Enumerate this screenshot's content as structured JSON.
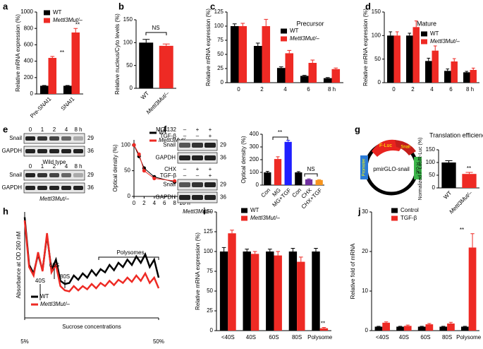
{
  "panel_letters": [
    "a",
    "b",
    "c",
    "d",
    "e",
    "f",
    "g",
    "h",
    "i",
    "j"
  ],
  "blots": {
    "e": {
      "lanes": [
        "0",
        "1",
        "2",
        "4",
        "8 h"
      ],
      "rows": [
        "Snail",
        "GAPDH"
      ],
      "markers": [
        "29",
        "36"
      ],
      "captions": [
        "Wild type",
        "Mettl3Mut/–"
      ]
    },
    "f": {
      "treatments": [
        {
          "name": "MG-132",
          "signs": [
            "–",
            "+",
            "+"
          ]
        },
        {
          "name": "TGF-β",
          "signs": [
            "–",
            "–",
            "+"
          ]
        }
      ],
      "treatments2": [
        {
          "name": "CHX",
          "signs": [
            "–",
            "+",
            "+"
          ]
        },
        {
          "name": "TGF-β",
          "signs": [
            "–",
            "–",
            "+"
          ]
        }
      ],
      "rows": [
        "Snail",
        "GAPDH"
      ],
      "markers": [
        "29",
        "36"
      ],
      "caption": "Mettl3Mut/–"
    }
  },
  "plasmid": {
    "label": "pmirGLO-snail",
    "segments": [
      "F-Luc",
      "Snail",
      "Promoter",
      "R-Luc"
    ]
  },
  "chart_data": [
    {
      "type": "bar",
      "ylabel": "Relative mRNA expression (%)",
      "categories": [
        "Pre-SNAI1",
        "SNAI1"
      ],
      "series": [
        {
          "name": "WT",
          "color": "#000000",
          "values": [
            100,
            100
          ],
          "errors": [
            3,
            3
          ]
        },
        {
          "name": "Mettl3Mut/–",
          "color": "#ee2a24",
          "values": [
            440,
            750
          ],
          "errors": [
            18,
            50
          ]
        }
      ],
      "ylim": [
        0,
        1000
      ],
      "yticks": [
        0,
        200,
        400,
        600,
        800,
        1000
      ],
      "annotations": [
        "**",
        "**"
      ]
    },
    {
      "type": "bar",
      "ylabel": "Relative nucleus/Cyto levels (%)",
      "categories": [
        "WT",
        "Mettl3Mut/–"
      ],
      "values": [
        100,
        93
      ],
      "errors": [
        7,
        4
      ],
      "colors": [
        "#000000",
        "#ee2a24"
      ],
      "ylim": [
        0,
        150
      ],
      "yticks": [
        0,
        50,
        100,
        150
      ],
      "annotations": [
        "NS"
      ]
    },
    {
      "type": "bar",
      "title": "Precursor",
      "ylabel": "Relative mRNA expression (%)",
      "categories": [
        "0",
        "2",
        "4",
        "6",
        "8 h"
      ],
      "series": [
        {
          "name": "WT",
          "color": "#000000",
          "values": [
            100,
            65,
            26,
            12,
            8
          ],
          "errors": [
            4,
            5,
            2,
            1,
            1
          ]
        },
        {
          "name": "Mettl3Mut/–",
          "color": "#ee2a24",
          "values": [
            100,
            100,
            52,
            35,
            24
          ],
          "errors": [
            5,
            12,
            5,
            5,
            2
          ]
        }
      ],
      "ylim": [
        0,
        125
      ],
      "yticks": [
        0,
        25,
        50,
        75,
        100,
        125
      ]
    },
    {
      "type": "bar",
      "title": "Mature",
      "ylabel": "Relative mRNA expression (%)",
      "categories": [
        "0",
        "2",
        "4",
        "6",
        "8 h"
      ],
      "series": [
        {
          "name": "WT",
          "color": "#000000",
          "values": [
            100,
            100,
            46,
            25,
            22
          ],
          "errors": [
            8,
            5,
            6,
            4,
            2
          ]
        },
        {
          "name": "Mettl3Mut/–",
          "color": "#ee2a24",
          "values": [
            100,
            118,
            68,
            45,
            27
          ],
          "errors": [
            8,
            13,
            10,
            6,
            4
          ]
        }
      ],
      "ylim": [
        0,
        150
      ],
      "yticks": [
        0,
        50,
        100,
        150
      ]
    },
    {
      "type": "line",
      "ylabel": "Optical density (%)",
      "x": [
        0,
        1,
        2,
        4,
        8
      ],
      "series": [
        {
          "name": "WT",
          "color": "#000000",
          "values": [
            100,
            78,
            55,
            38,
            28
          ]
        },
        {
          "name": "Mettl3Mut/–",
          "color": "#ee2a24",
          "values": [
            100,
            82,
            50,
            35,
            30
          ]
        }
      ],
      "xlim": [
        0,
        10
      ],
      "xticks": [
        0,
        2,
        4,
        6,
        8,
        {
          "value": 10,
          "label": "10 h"
        }
      ],
      "ylim": [
        0,
        110
      ],
      "yticks": [
        0,
        50,
        100
      ]
    },
    {
      "type": "bar",
      "ylabel": "Optical density (%)",
      "categories": [
        "Con",
        "MG",
        "MG+TGF",
        "Con",
        "CHX",
        "CHX+TGF"
      ],
      "values": [
        100,
        205,
        340,
        100,
        45,
        40
      ],
      "errors": [
        8,
        18,
        12,
        6,
        4,
        3
      ],
      "colors": [
        "#000000",
        "#ee2a24",
        "#1f1fff",
        "#000000",
        "#7030a0",
        "#f7941d"
      ],
      "ylim": [
        0,
        400
      ],
      "yticks": [
        0,
        100,
        200,
        300,
        400
      ],
      "annotations": [
        "**",
        "NS"
      ]
    },
    {
      "type": "bar",
      "title": "Translation efficiency",
      "ylabel": "Normalized F-Luc/R-Luc (%)",
      "categories": [
        "WT",
        "Mettl3Mut/–"
      ],
      "values": [
        100,
        55
      ],
      "errors": [
        7,
        6
      ],
      "colors": [
        "#000000",
        "#ee2a24"
      ],
      "ylim": [
        0,
        150
      ],
      "yticks": [
        0,
        50,
        100,
        150
      ],
      "annotations": [
        "**"
      ]
    },
    {
      "type": "line",
      "ylabel": "Absorbance at OD 260 nM",
      "xlabel": "Sucrose concentrations",
      "x": [
        5,
        6.5,
        8,
        9.5,
        11,
        12.5,
        14,
        15.5,
        17,
        18.5,
        20,
        21.5,
        23,
        24.5,
        26,
        27.5,
        29,
        30.5,
        32,
        33.5,
        35,
        36.5,
        38,
        39.5,
        41,
        42.5,
        44,
        45.5,
        47,
        48.5,
        50
      ],
      "series": [
        {
          "name": "WT",
          "color": "#000000",
          "values": [
            0.95,
            0.5,
            0.42,
            0.6,
            0.45,
            0.78,
            0.45,
            0.55,
            0.35,
            0.32,
            0.33,
            0.4,
            0.36,
            0.42,
            0.38,
            0.45,
            0.4,
            0.46,
            0.43,
            0.5,
            0.45,
            0.52,
            0.48,
            0.55,
            0.5,
            0.58,
            0.52,
            0.6,
            0.48,
            0.55,
            0.38
          ]
        },
        {
          "name": "Mettl3Mut/–",
          "color": "#ee2a24",
          "values": [
            0.92,
            0.48,
            0.4,
            0.62,
            0.44,
            0.8,
            0.43,
            0.5,
            0.3,
            0.26,
            0.25,
            0.3,
            0.26,
            0.3,
            0.27,
            0.32,
            0.28,
            0.33,
            0.3,
            0.35,
            0.31,
            0.36,
            0.33,
            0.38,
            0.34,
            0.4,
            0.35,
            0.42,
            0.33,
            0.38,
            0.28
          ]
        }
      ],
      "xlim": [
        5,
        50
      ],
      "xticks": [
        {
          "value": 5,
          "label": "5%"
        },
        {
          "value": 50,
          "label": "50%"
        }
      ],
      "ylim": [
        0,
        1
      ],
      "annotations": [
        "40S",
        "60S",
        "80S",
        "Polysomes"
      ]
    },
    {
      "type": "bar",
      "ylabel": "Relative mRNA expression (%)",
      "categories": [
        "<40S",
        "40S",
        "60S",
        "80S",
        "Polysome"
      ],
      "series": [
        {
          "name": "WT",
          "color": "#000000",
          "values": [
            100,
            100,
            100,
            100,
            100
          ],
          "errors": [
            5,
            3,
            3,
            4,
            4
          ]
        },
        {
          "name": "Mettl3Mut/–",
          "color": "#ee2a24",
          "values": [
            123,
            97,
            95,
            87,
            3
          ],
          "errors": [
            4,
            3,
            5,
            6,
            1
          ]
        }
      ],
      "ylim": [
        0,
        150
      ],
      "yticks": [
        0,
        25,
        50,
        75,
        100,
        125,
        150
      ],
      "annotations": [
        "**"
      ]
    },
    {
      "type": "bar",
      "ylabel": "Relative fold of mRNA",
      "categories": [
        "<40S",
        "40S",
        "60S",
        "80S",
        "Polysome"
      ],
      "series": [
        {
          "name": "Control",
          "color": "#000000",
          "values": [
            1,
            1,
            1,
            1,
            1
          ],
          "errors": [
            0.1,
            0.1,
            0.1,
            0.1,
            0.1
          ]
        },
        {
          "name": "TGF-β",
          "color": "#ee2a24",
          "values": [
            2,
            1.2,
            1.6,
            1.8,
            21
          ],
          "errors": [
            0.2,
            0.2,
            0.2,
            0.3,
            3.5
          ]
        }
      ],
      "ylim": [
        0,
        30
      ],
      "yticks": [
        0,
        10,
        20,
        30
      ],
      "annotations": [
        "**"
      ]
    }
  ]
}
